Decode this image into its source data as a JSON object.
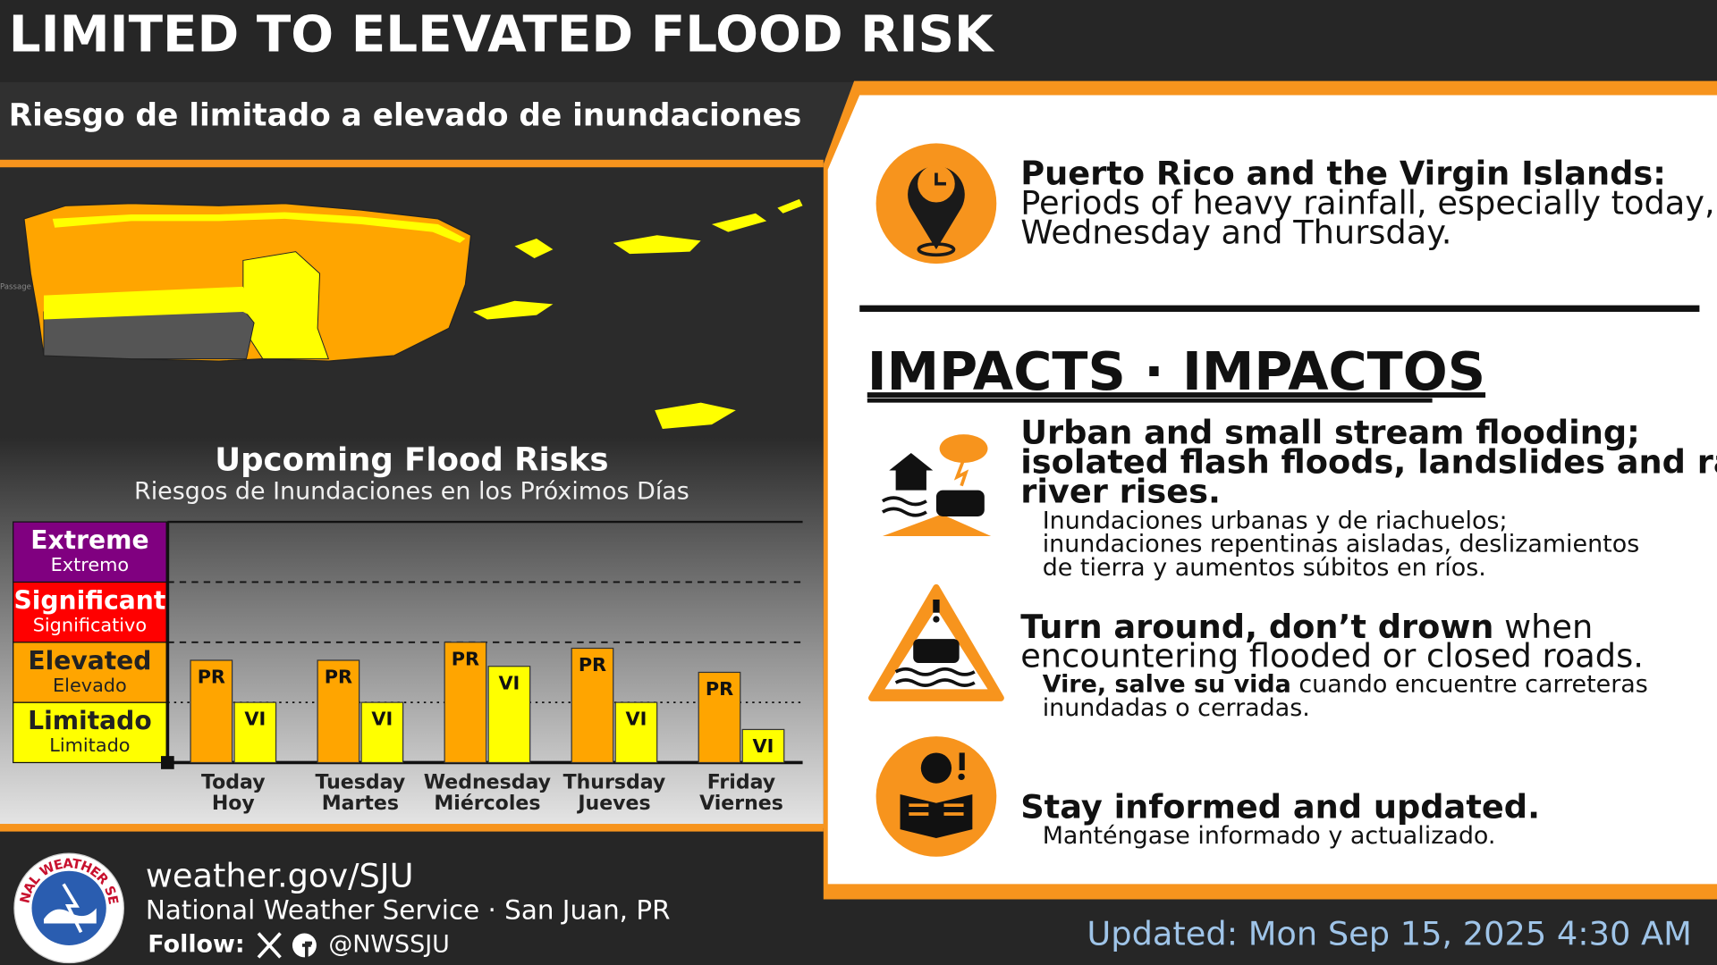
{
  "header": {
    "title": "LIMITED TO ELEVATED FLOOD RISK",
    "subtitle": "Riesgo de limitado a elevado de inundaciones"
  },
  "map": {
    "label": "Passage"
  },
  "chart_data": {
    "type": "bar",
    "title": "Upcoming Flood Risks",
    "subtitle": "Riesgos de Inundaciones en los Próximos Días",
    "categories": [
      "Today",
      "Tuesday",
      "Wednesday",
      "Thursday",
      "Friday"
    ],
    "categories_es": [
      "Hoy",
      "Martes",
      "Miércoles",
      "Jueves",
      "Viernes"
    ],
    "levels": [
      {
        "name": "Limitado",
        "subname": "Limitado",
        "color": "#ffff00"
      },
      {
        "name": "Elevated",
        "subname": "Elevado",
        "color": "#ffa500"
      },
      {
        "name": "Significant",
        "subname": "Significativo",
        "color": "#ff0000"
      },
      {
        "name": "Extreme",
        "subname": "Extremo",
        "color": "#800080"
      }
    ],
    "ylim": [
      0,
      4
    ],
    "series": [
      {
        "name": "PR",
        "color": "#ffa500",
        "values": [
          1.7,
          1.7,
          2.0,
          1.9,
          1.5
        ]
      },
      {
        "name": "VI",
        "color": "#ffff00",
        "values": [
          1.0,
          1.0,
          1.6,
          1.0,
          0.55
        ]
      }
    ]
  },
  "summary": {
    "heading": "Puerto Rico and the Virgin Islands:",
    "lines": [
      "Periods of heavy rainfall, especially today,",
      "Wednesday and Thursday."
    ]
  },
  "impacts": {
    "title": "IMPACTS · IMPACTOS",
    "items": [
      {
        "heading": [
          "Urban and small stream flooding;",
          "isolated flash floods, landslides and rapid",
          "river rises."
        ],
        "sub": [
          "Inundaciones urbanas y de riachuelos;",
          "inundaciones repentinas aisladas, deslizamientos",
          "de tierra y aumentos súbitos en ríos."
        ]
      },
      {
        "heading_bold": "Turn around, don’t drown",
        "heading": [
          " when",
          "encountering flooded or closed roads."
        ],
        "sub_bold": "Vire, salve su vida",
        "sub": [
          " cuando encuentre carreteras",
          "inundadas o cerradas."
        ]
      },
      {
        "heading": [
          "Stay informed and updated."
        ],
        "sub": [
          "Manténgase informado y actualizado."
        ]
      }
    ]
  },
  "footer": {
    "logo_text": "NATIONAL WEATHER SERVICE",
    "url": "weather.gov/SJU",
    "org": "National Weather Service · San Juan, PR",
    "follow": "Follow:",
    "handle": "@NWSSJU",
    "updated": "Updated: Mon Sep 15, 2025 4:30 AM"
  }
}
